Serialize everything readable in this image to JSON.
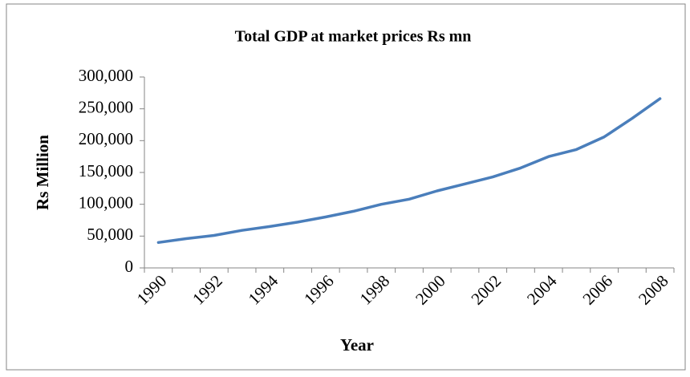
{
  "chart_data": {
    "type": "line",
    "title": "Total GDP at market prices Rs mn",
    "x_label": "Year",
    "y_label": "Rs Million",
    "categories": [
      "1990",
      null,
      "1992",
      null,
      "1994",
      null,
      "1996",
      null,
      "1998",
      null,
      "2000",
      null,
      "2002",
      null,
      "2004",
      null,
      "2006",
      null,
      "2008"
    ],
    "series": [
      {
        "name": "Total GDP at market prices Rs mn",
        "color": "#4a7ebb",
        "values": [
          40000,
          46000,
          51000,
          59000,
          65000,
          72000,
          80000,
          89000,
          100000,
          108000,
          121000,
          132000,
          143000,
          157000,
          175000,
          186000,
          206000,
          235000,
          266000
        ]
      }
    ],
    "ylim": [
      0,
      300000
    ],
    "yticks": [
      0,
      {
        "value": 50000,
        "label": "50,000"
      },
      {
        "value": 100000,
        "label": "100,000"
      },
      {
        "value": 150000,
        "label": "150,000"
      },
      {
        "value": 200000,
        "label": "200,000"
      },
      {
        "value": 250000,
        "label": "250,000"
      },
      {
        "value": 300000,
        "label": "300,000"
      }
    ],
    "grid": false
  }
}
